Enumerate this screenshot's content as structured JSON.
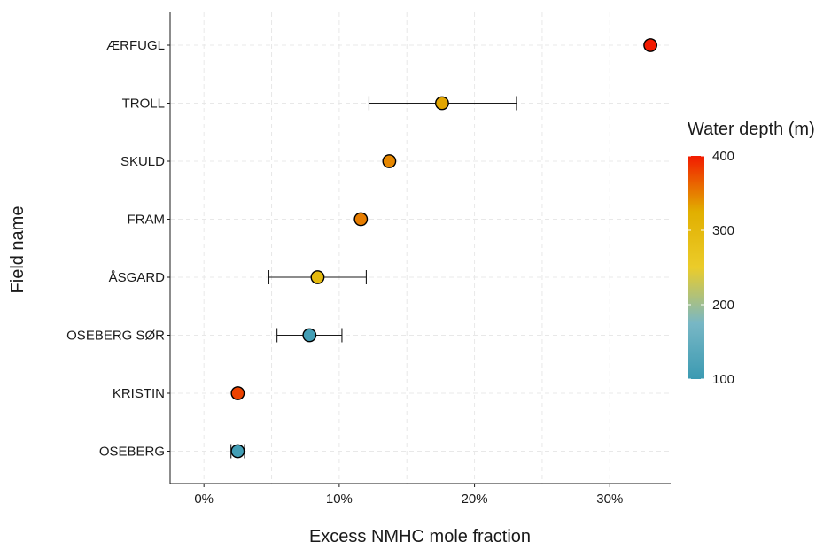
{
  "chart_data": {
    "type": "scatter",
    "title": "",
    "xlabel": "Excess NMHC mole fraction",
    "ylabel": "Field name",
    "xlim": [
      -2.5,
      34.5
    ],
    "x_ticks": [
      0,
      10,
      20,
      30
    ],
    "x_tick_labels": [
      "0%",
      "10%",
      "20%",
      "30%"
    ],
    "grid": "dashed, major and minor",
    "categories": [
      "OSEBERG",
      "KRISTIN",
      "OSEBERG SØR",
      "ÅSGARD",
      "FRAM",
      "SKULD",
      "TROLL",
      "ÆRFUGL"
    ],
    "points": [
      {
        "field": "OSEBERG",
        "x": 2.5,
        "xmin": 2.0,
        "xmax": 3.0,
        "depth": 110
      },
      {
        "field": "KRISTIN",
        "x": 2.5,
        "xmin": null,
        "xmax": null,
        "depth": 380
      },
      {
        "field": "OSEBERG SØR",
        "x": 7.8,
        "xmin": 5.4,
        "xmax": 10.2,
        "depth": 110
      },
      {
        "field": "ÅSGARD",
        "x": 8.4,
        "xmin": 4.8,
        "xmax": 12.0,
        "depth": 300
      },
      {
        "field": "FRAM",
        "x": 11.6,
        "xmin": null,
        "xmax": null,
        "depth": 350
      },
      {
        "field": "SKULD",
        "x": 13.7,
        "xmin": null,
        "xmax": null,
        "depth": 345
      },
      {
        "field": "TROLL",
        "x": 17.6,
        "xmin": 12.2,
        "xmax": 23.1,
        "depth": 330
      },
      {
        "field": "ÆRFUGL",
        "x": 33.0,
        "xmin": null,
        "xmax": null,
        "depth": 400
      }
    ],
    "legend": {
      "title": "Water depth (m)",
      "placement": "right",
      "min": 100,
      "max": 400,
      "ticks": [
        100,
        200,
        300,
        400
      ],
      "tick_labels": [
        "100",
        "200",
        "300",
        "400"
      ],
      "colors": [
        {
          "value": 100,
          "color": "#3b9ab2"
        },
        {
          "value": 175,
          "color": "#78b7c5"
        },
        {
          "value": 250,
          "color": "#ebcc2a"
        },
        {
          "value": 325,
          "color": "#e1af00"
        },
        {
          "value": 400,
          "color": "#f21a00"
        }
      ]
    }
  }
}
